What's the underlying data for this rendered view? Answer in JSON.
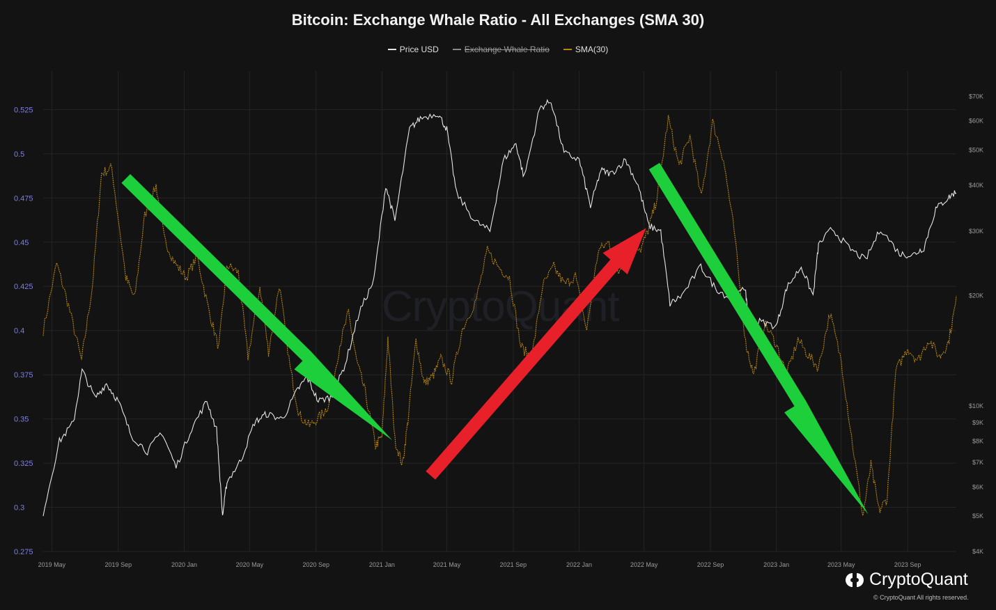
{
  "colors": {
    "background": "#131313",
    "grid": "#242424",
    "price": "#e6e6e6",
    "sma": "#b8860b",
    "left_axis_text": "#7f7fe6",
    "right_axis_text": "#9a9a9a",
    "arrow_green": "#1ecf3c",
    "arrow_red": "#e8202a"
  },
  "brand": {
    "name": "CryptoQuant",
    "watermark": "CryptoQuant",
    "copyright": "© CryptoQuant All rights reserved."
  },
  "chart_data": {
    "type": "line",
    "title": "Bitcoin: Exchange Whale Ratio - All Exchanges (SMA 30)",
    "legend": [
      {
        "label": "Price USD",
        "color": "#e6e6e6",
        "hidden": false
      },
      {
        "label": "Exchange Whale Ratio",
        "color": "#8a8a8a",
        "hidden": true
      },
      {
        "label": "SMA(30)",
        "color": "#b8860b",
        "hidden": false
      }
    ],
    "x_ticks": [
      "2019 May",
      "2019 Sep",
      "2020 Jan",
      "2020 May",
      "2020 Sep",
      "2021 Jan",
      "2021 May",
      "2021 Sep",
      "2022 Jan",
      "2022 May",
      "2022 Sep",
      "2023 Jan",
      "2023 May",
      "2023 Sep"
    ],
    "x_range": [
      "2019-04-15",
      "2023-11-30"
    ],
    "y_left": {
      "ticks": [
        "0.275",
        "0.3",
        "0.325",
        "0.35",
        "0.375",
        "0.4",
        "0.425",
        "0.45",
        "0.475",
        "0.5",
        "0.525"
      ],
      "range": [
        0.275,
        0.535
      ]
    },
    "y_right": {
      "scale": "log",
      "ticks": [
        "$4K",
        "$5K",
        "$6K",
        "$7K",
        "$8K",
        "$9K",
        "$10K",
        "$20K",
        "$30K",
        "$40K",
        "$50K",
        "$60K",
        "$70K"
      ],
      "range": [
        4000,
        72000
      ]
    },
    "series": [
      {
        "name": "Price USD",
        "axis": "right",
        "x": [
          "2019-04-15",
          "2019-05-15",
          "2019-06-10",
          "2019-06-26",
          "2019-07-20",
          "2019-08-10",
          "2019-09-01",
          "2019-09-25",
          "2019-10-25",
          "2019-11-20",
          "2019-12-17",
          "2020-01-15",
          "2020-02-12",
          "2020-03-01",
          "2020-03-12",
          "2020-03-20",
          "2020-04-15",
          "2020-05-10",
          "2020-06-01",
          "2020-07-01",
          "2020-07-28",
          "2020-08-15",
          "2020-09-05",
          "2020-10-01",
          "2020-10-25",
          "2020-11-20",
          "2020-12-17",
          "2021-01-08",
          "2021-01-25",
          "2021-02-21",
          "2021-03-13",
          "2021-04-14",
          "2021-05-01",
          "2021-05-19",
          "2021-06-22",
          "2021-07-20",
          "2021-08-14",
          "2021-09-06",
          "2021-09-21",
          "2021-10-20",
          "2021-11-10",
          "2021-12-04",
          "2022-01-01",
          "2022-01-22",
          "2022-02-10",
          "2022-03-01",
          "2022-03-28",
          "2022-04-20",
          "2022-05-10",
          "2022-06-01",
          "2022-06-18",
          "2022-07-10",
          "2022-08-14",
          "2022-09-10",
          "2022-10-10",
          "2022-11-05",
          "2022-11-10",
          "2022-12-01",
          "2023-01-01",
          "2023-01-20",
          "2023-02-16",
          "2023-03-10",
          "2023-03-20",
          "2023-04-14",
          "2023-05-15",
          "2023-06-15",
          "2023-07-13",
          "2023-08-17",
          "2023-09-10",
          "2023-10-01",
          "2023-10-23",
          "2023-11-15",
          "2023-11-30"
        ],
        "y": [
          5100,
          8000,
          9000,
          12500,
          10500,
          11500,
          10300,
          8300,
          7500,
          8500,
          6800,
          8700,
          10300,
          8600,
          5000,
          6200,
          7100,
          9000,
          9500,
          9200,
          11000,
          12000,
          10300,
          10600,
          13000,
          18000,
          22000,
          40000,
          32000,
          57000,
          61000,
          63000,
          57000,
          38000,
          32000,
          30000,
          47000,
          52000,
          42000,
          65000,
          68000,
          49000,
          47000,
          35000,
          44000,
          43000,
          47000,
          40000,
          31000,
          30000,
          19000,
          20000,
          24000,
          21000,
          19500,
          21000,
          16500,
          17000,
          16500,
          21000,
          24000,
          20000,
          27500,
          30500,
          27000,
          25000,
          30500,
          26000,
          25800,
          27000,
          34500,
          37000,
          38500
        ]
      },
      {
        "name": "SMA(30)",
        "axis": "left",
        "x": [
          "2019-04-15",
          "2019-05-10",
          "2019-06-01",
          "2019-06-25",
          "2019-07-15",
          "2019-08-01",
          "2019-08-20",
          "2019-09-15",
          "2019-10-01",
          "2019-10-20",
          "2019-11-10",
          "2019-11-25",
          "2019-12-15",
          "2020-01-05",
          "2020-01-25",
          "2020-02-15",
          "2020-03-05",
          "2020-03-20",
          "2020-04-10",
          "2020-04-28",
          "2020-05-20",
          "2020-06-05",
          "2020-06-25",
          "2020-07-15",
          "2020-08-01",
          "2020-08-20",
          "2020-09-10",
          "2020-09-25",
          "2020-10-15",
          "2020-10-31",
          "2020-11-15",
          "2020-12-01",
          "2020-12-20",
          "2021-01-01",
          "2021-01-12",
          "2021-01-25",
          "2021-02-08",
          "2021-02-18",
          "2021-03-05",
          "2021-03-20",
          "2021-04-05",
          "2021-04-20",
          "2021-05-10",
          "2021-05-30",
          "2021-06-25",
          "2021-07-15",
          "2021-08-05",
          "2021-08-25",
          "2021-09-15",
          "2021-10-05",
          "2021-10-25",
          "2021-11-15",
          "2021-12-05",
          "2021-12-25",
          "2022-01-15",
          "2022-02-05",
          "2022-02-25",
          "2022-03-15",
          "2022-04-05",
          "2022-04-25",
          "2022-05-10",
          "2022-05-25",
          "2022-06-15",
          "2022-07-05",
          "2022-07-25",
          "2022-08-15",
          "2022-09-05",
          "2022-09-25",
          "2022-10-15",
          "2022-11-05",
          "2022-11-20",
          "2022-12-10",
          "2022-12-31",
          "2023-01-20",
          "2023-02-10",
          "2023-03-01",
          "2023-03-20",
          "2023-04-10",
          "2023-05-01",
          "2023-05-20",
          "2023-06-10",
          "2023-06-25",
          "2023-07-10",
          "2023-07-25",
          "2023-08-10",
          "2023-09-01",
          "2023-09-20",
          "2023-10-10",
          "2023-10-30",
          "2023-11-15",
          "2023-11-30"
        ],
        "y": [
          0.4,
          0.438,
          0.414,
          0.383,
          0.425,
          0.489,
          0.492,
          0.43,
          0.418,
          0.465,
          0.482,
          0.452,
          0.438,
          0.43,
          0.442,
          0.412,
          0.39,
          0.437,
          0.433,
          0.385,
          0.425,
          0.388,
          0.426,
          0.379,
          0.352,
          0.346,
          0.352,
          0.358,
          0.392,
          0.41,
          0.383,
          0.365,
          0.335,
          0.34,
          0.396,
          0.338,
          0.324,
          0.349,
          0.395,
          0.37,
          0.374,
          0.384,
          0.372,
          0.401,
          0.418,
          0.445,
          0.436,
          0.43,
          0.391,
          0.384,
          0.425,
          0.436,
          0.426,
          0.431,
          0.4,
          0.445,
          0.45,
          0.433,
          0.452,
          0.446,
          0.458,
          0.475,
          0.52,
          0.493,
          0.51,
          0.475,
          0.518,
          0.497,
          0.456,
          0.393,
          0.375,
          0.404,
          0.393,
          0.375,
          0.395,
          0.386,
          0.379,
          0.41,
          0.383,
          0.34,
          0.295,
          0.324,
          0.298,
          0.305,
          0.377,
          0.39,
          0.383,
          0.395,
          0.385,
          0.393,
          0.417
        ]
      }
    ],
    "annotations": [
      {
        "type": "arrow",
        "color": "green",
        "from": [
          "2019-09-15",
          0.486
        ],
        "to": [
          "2021-01-20",
          0.338
        ]
      },
      {
        "type": "arrow",
        "color": "green",
        "from": [
          "2022-05-20",
          0.493
        ],
        "to": [
          "2023-06-20",
          0.296
        ]
      },
      {
        "type": "arrow",
        "color": "red",
        "from": [
          "2021-04-01",
          0.318
        ],
        "to": [
          "2022-05-05",
          0.458
        ]
      }
    ]
  }
}
